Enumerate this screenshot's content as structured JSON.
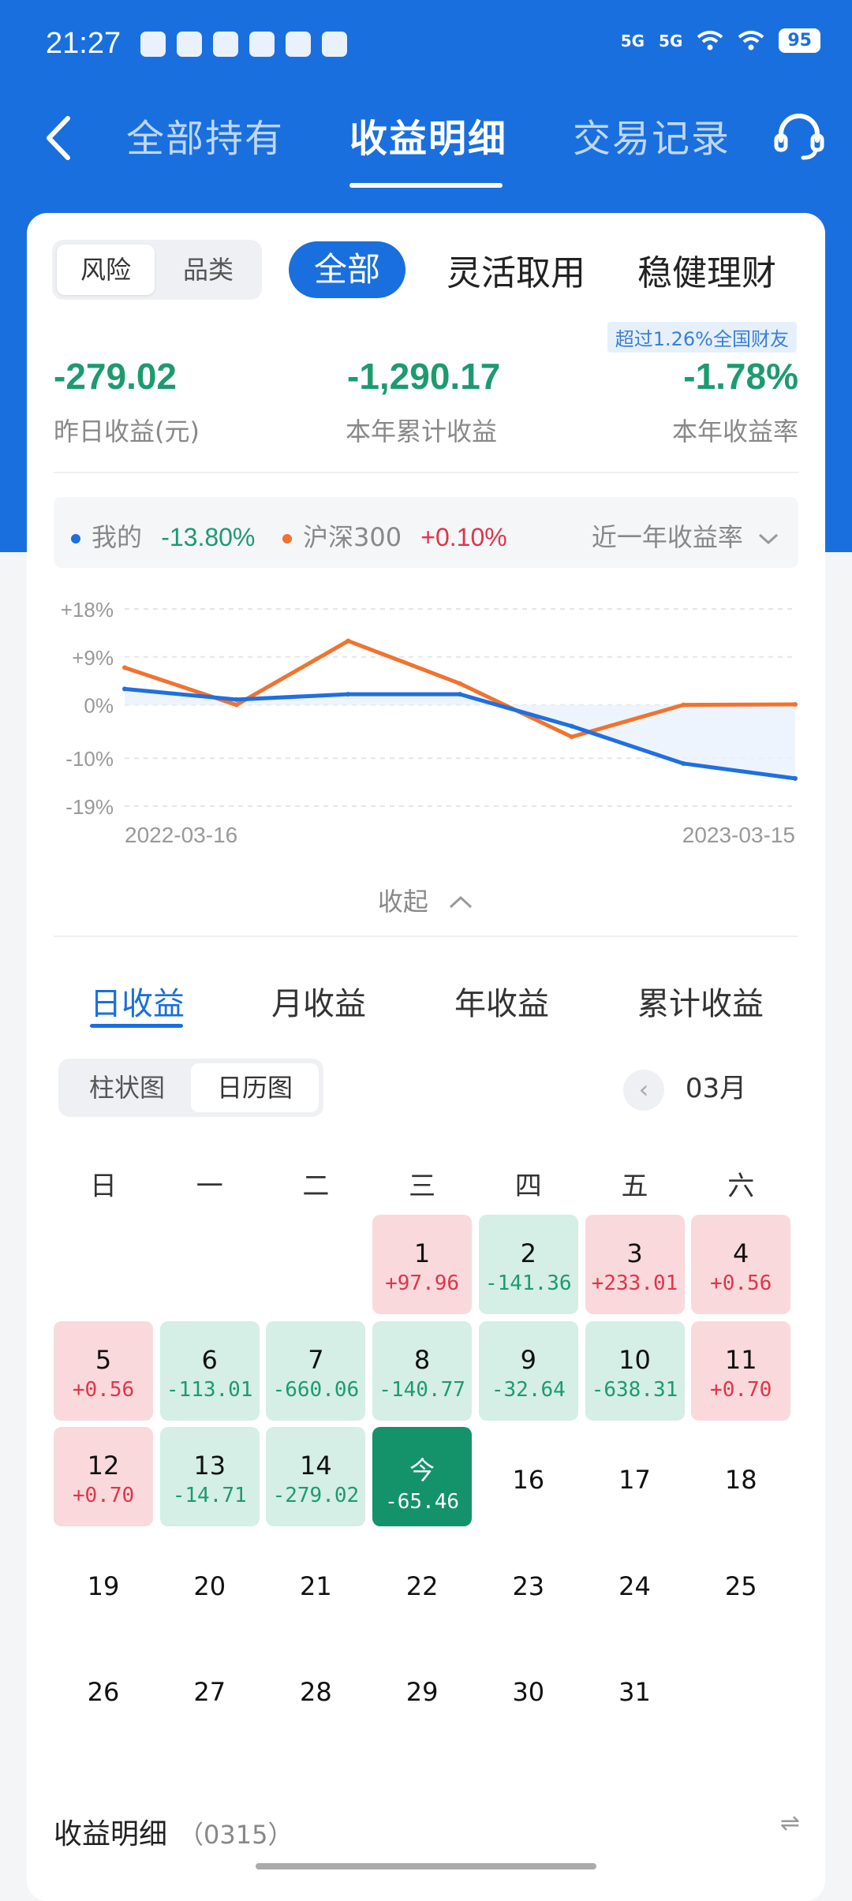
{
  "status": {
    "time": "21:27",
    "battery": "95",
    "network": "5G"
  },
  "header": {
    "tabs": [
      {
        "label": "全部持有"
      },
      {
        "label": "收益明细"
      },
      {
        "label": "交易记录"
      }
    ],
    "active_tab": "收益明细"
  },
  "filters": {
    "segment": [
      "风险",
      "品类"
    ],
    "segment_selected": "风险",
    "categories": [
      "全部",
      "灵活取用",
      "稳健理财"
    ],
    "category_selected": "全部"
  },
  "summary": {
    "badge": "超过1.26%全国财友",
    "yesterday": {
      "value": "-279.02",
      "label": "昨日收益(元)"
    },
    "ytd": {
      "value": "-1,290.17",
      "label": "本年累计收益"
    },
    "ytd_rate": {
      "value": "-1.78%",
      "label": "本年收益率"
    }
  },
  "legend": {
    "mine_label": "我的",
    "mine_value": "-13.80%",
    "bench_label": "沪深300",
    "bench_value": "+0.10%",
    "period": "近一年收益率"
  },
  "colors": {
    "mine": "#1f6fe0",
    "bench": "#f0732e",
    "up": "#e0344a",
    "down": "#1c9b6e",
    "accent": "#1a6fde"
  },
  "chart_data": {
    "type": "line",
    "x": [
      "2022-03-16",
      "2022-05-01",
      "2022-07-01",
      "2022-09-01",
      "2022-11-01",
      "2023-01-01",
      "2023-03-15"
    ],
    "xticks": [
      "2022-03-16",
      "2023-03-15"
    ],
    "yticks": [
      "+18%",
      "+9%",
      "0%",
      "-10%",
      "-19%"
    ],
    "ylim": [
      -19,
      18
    ],
    "series": [
      {
        "name": "我的",
        "values": [
          3,
          1,
          2,
          2,
          -4,
          -11,
          -13.8
        ]
      },
      {
        "name": "沪深300",
        "values": [
          7,
          0,
          12,
          4,
          -6,
          0,
          0.1
        ]
      }
    ]
  },
  "collapse_label": "收起",
  "returns": {
    "tabs": [
      "日收益",
      "月收益",
      "年收益",
      "累计收益"
    ],
    "active": "日收益",
    "views": [
      "柱状图",
      "日历图"
    ],
    "view_selected": "日历图",
    "month": "03月"
  },
  "calendar": {
    "weekdays": [
      "日",
      "一",
      "二",
      "三",
      "四",
      "五",
      "六"
    ],
    "start_weekday": 3,
    "days": [
      {
        "d": "1",
        "v": "+97.96",
        "t": "up"
      },
      {
        "d": "2",
        "v": "-141.36",
        "t": "down"
      },
      {
        "d": "3",
        "v": "+233.01",
        "t": "up"
      },
      {
        "d": "4",
        "v": "+0.56",
        "t": "up"
      },
      {
        "d": "5",
        "v": "+0.56",
        "t": "up"
      },
      {
        "d": "6",
        "v": "-113.01",
        "t": "down"
      },
      {
        "d": "7",
        "v": "-660.06",
        "t": "down"
      },
      {
        "d": "8",
        "v": "-140.77",
        "t": "down"
      },
      {
        "d": "9",
        "v": "-32.64",
        "t": "down"
      },
      {
        "d": "10",
        "v": "-638.31",
        "t": "down"
      },
      {
        "d": "11",
        "v": "+0.70",
        "t": "up"
      },
      {
        "d": "12",
        "v": "+0.70",
        "t": "up"
      },
      {
        "d": "13",
        "v": "-14.71",
        "t": "down"
      },
      {
        "d": "14",
        "v": "-279.02",
        "t": "down"
      },
      {
        "d": "今",
        "v": "-65.46",
        "t": "today"
      },
      {
        "d": "16",
        "v": "",
        "t": "plain"
      },
      {
        "d": "17",
        "v": "",
        "t": "plain"
      },
      {
        "d": "18",
        "v": "",
        "t": "plain"
      },
      {
        "d": "19",
        "v": "",
        "t": "plain"
      },
      {
        "d": "20",
        "v": "",
        "t": "plain"
      },
      {
        "d": "21",
        "v": "",
        "t": "plain"
      },
      {
        "d": "22",
        "v": "",
        "t": "plain"
      },
      {
        "d": "23",
        "v": "",
        "t": "plain"
      },
      {
        "d": "24",
        "v": "",
        "t": "plain"
      },
      {
        "d": "25",
        "v": "",
        "t": "plain"
      },
      {
        "d": "26",
        "v": "",
        "t": "plain"
      },
      {
        "d": "27",
        "v": "",
        "t": "plain"
      },
      {
        "d": "28",
        "v": "",
        "t": "plain"
      },
      {
        "d": "29",
        "v": "",
        "t": "plain"
      },
      {
        "d": "30",
        "v": "",
        "t": "plain"
      },
      {
        "d": "31",
        "v": "",
        "t": "plain"
      }
    ]
  },
  "detail": {
    "title": "收益明细",
    "date": "（0315）"
  }
}
